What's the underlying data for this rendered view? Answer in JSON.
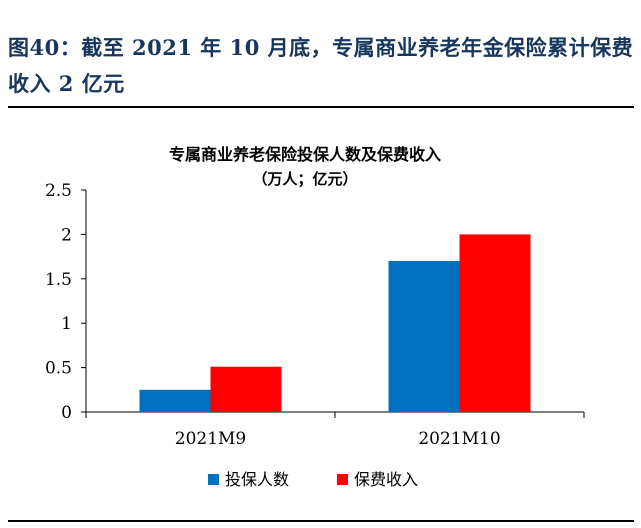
{
  "figure": {
    "caption": "图40：截至 2021 年 10 月底，专属商业养老年金保险累计保费收入 2 亿元"
  },
  "chart_data": {
    "type": "bar",
    "title": "专属商业养老保险投保人数及保费收入",
    "subtitle": "（万人；亿元）",
    "categories": [
      "2021M9",
      "2021M10"
    ],
    "series": [
      {
        "name": "投保人数",
        "color": "#0070c0",
        "values": [
          0.25,
          1.7
        ]
      },
      {
        "name": "保费收入",
        "color": "#ff0000",
        "values": [
          0.51,
          2.0
        ]
      }
    ],
    "ylim": [
      0,
      2.5
    ],
    "yticks": [
      "0",
      "0.5",
      "1",
      "1.5",
      "2",
      "2.5"
    ],
    "grid": false,
    "legend_position": "bottom"
  }
}
